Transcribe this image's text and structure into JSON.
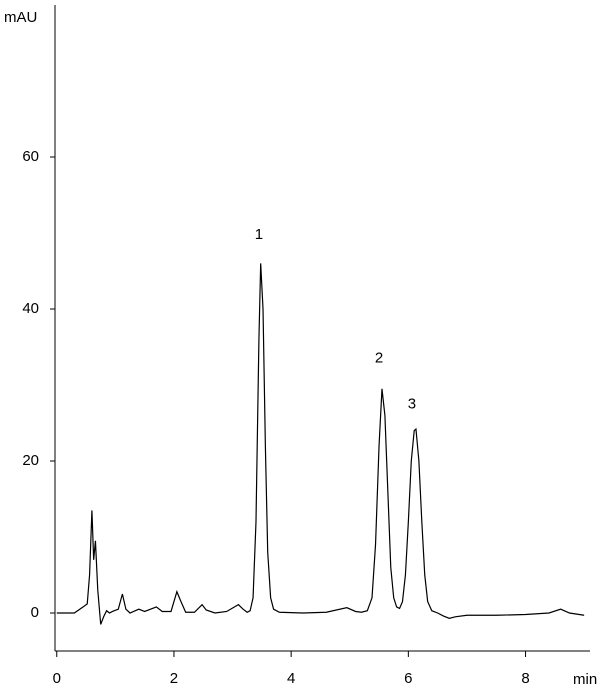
{
  "chart_data": {
    "type": "line",
    "x_label": "min",
    "y_label": "mAU",
    "xlim": [
      -0.03,
      9.1
    ],
    "ylim": [
      -5,
      80
    ],
    "xticks": [
      0,
      2,
      4,
      6,
      8
    ],
    "yticks": [
      0,
      20,
      40,
      60
    ],
    "grid": false,
    "color": "#000000",
    "x": [
      0,
      0.3,
      0.45,
      0.52,
      0.56,
      0.6,
      0.63,
      0.66,
      0.7,
      0.75,
      0.8,
      0.85,
      0.9,
      0.95,
      1.05,
      1.12,
      1.18,
      1.25,
      1.4,
      1.5,
      1.7,
      1.8,
      1.95,
      2.05,
      2.12,
      2.2,
      2.35,
      2.48,
      2.55,
      2.7,
      2.9,
      3.1,
      3.18,
      3.25,
      3.3,
      3.35,
      3.4,
      3.45,
      3.48,
      3.52,
      3.56,
      3.6,
      3.65,
      3.7,
      3.8,
      4.2,
      4.6,
      4.95,
      5.1,
      5.2,
      5.3,
      5.38,
      5.44,
      5.5,
      5.55,
      5.6,
      5.65,
      5.7,
      5.75,
      5.8,
      5.85,
      5.9,
      5.95,
      6.0,
      6.05,
      6.1,
      6.13,
      6.18,
      6.23,
      6.28,
      6.33,
      6.4,
      6.5,
      6.6,
      6.7,
      6.8,
      7.0,
      7.5,
      8.0,
      8.4,
      8.6,
      8.75,
      9.0
    ],
    "values": [
      0,
      0,
      0.8,
      1.2,
      5,
      13.5,
      7,
      9.5,
      3,
      -1.5,
      -0.5,
      0.3,
      0,
      0.2,
      0.5,
      2.5,
      0.5,
      0,
      0.5,
      0.2,
      0.8,
      0.2,
      0.2,
      2.8,
      1.5,
      0.1,
      0.1,
      1.1,
      0.4,
      0,
      0.2,
      1.1,
      0.5,
      0.1,
      0.3,
      2,
      12,
      36,
      46,
      40,
      22,
      8,
      2,
      0.5,
      0.1,
      0,
      0.1,
      0.7,
      0.2,
      0.1,
      0.3,
      2,
      9,
      22,
      29.5,
      26,
      16,
      6,
      2,
      0.8,
      0.6,
      1.5,
      5,
      12,
      20,
      24,
      24.2,
      20,
      12,
      5,
      1.5,
      0.3,
      0,
      -0.4,
      -0.7,
      -0.5,
      -0.3,
      -0.3,
      -0.2,
      0,
      0.5,
      0,
      -0.3
    ],
    "annotations": [
      {
        "text": "1",
        "x": 3.45,
        "y": 49.7
      },
      {
        "text": "2",
        "x": 5.5,
        "y": 33.5
      },
      {
        "text": "3",
        "x": 6.06,
        "y": 27.4
      }
    ]
  }
}
